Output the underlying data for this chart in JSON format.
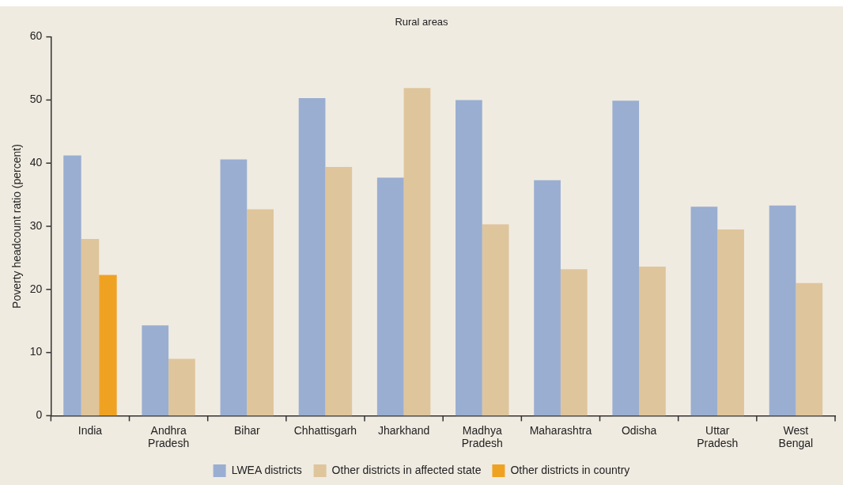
{
  "chart_data": {
    "type": "bar",
    "title": "Rural areas",
    "ylabel": "Poverty headcount ratio (percent)",
    "categories": [
      "India",
      "Andhra Pradesh",
      "Bihar",
      "Chhattisgarh",
      "Jharkhand",
      "Madhya Pradesh",
      "Maharashtra",
      "Odisha",
      "Uttar Pradesh",
      "West Bengal"
    ],
    "series": [
      {
        "name": "LWEA districts",
        "color": "#9aaed1",
        "values": [
          41.2,
          14.3,
          40.6,
          50.3,
          37.7,
          50.0,
          37.3,
          49.9,
          33.1,
          33.3
        ]
      },
      {
        "name": "Other districts in affected state",
        "color": "#dfc59c",
        "values": [
          28.0,
          9.0,
          32.7,
          39.4,
          51.9,
          30.3,
          23.2,
          23.6,
          29.5,
          21.0
        ]
      },
      {
        "name": "Other districts in country",
        "color": "#efa222",
        "values": [
          22.3,
          null,
          null,
          null,
          null,
          null,
          null,
          null,
          null,
          null
        ]
      }
    ],
    "ylim": [
      0,
      60
    ],
    "yticks": [
      0,
      10,
      20,
      30,
      40,
      50,
      60
    ],
    "grid": false,
    "legend": "bottom"
  }
}
